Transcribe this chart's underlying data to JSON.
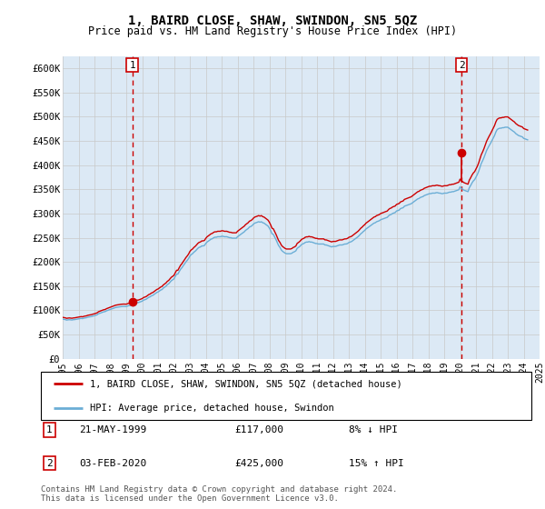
{
  "title": "1, BAIRD CLOSE, SHAW, SWINDON, SN5 5QZ",
  "subtitle": "Price paid vs. HM Land Registry's House Price Index (HPI)",
  "ylabel_ticks": [
    "£0",
    "£50K",
    "£100K",
    "£150K",
    "£200K",
    "£250K",
    "£300K",
    "£350K",
    "£400K",
    "£450K",
    "£500K",
    "£550K",
    "£600K"
  ],
  "ytick_values": [
    0,
    50000,
    100000,
    150000,
    200000,
    250000,
    300000,
    350000,
    400000,
    450000,
    500000,
    550000,
    600000
  ],
  "ylim": [
    0,
    625000
  ],
  "hpi_color": "#6baed6",
  "price_color": "#cc0000",
  "marker_color": "#cc0000",
  "grid_color": "#c8c8c8",
  "chart_bg_color": "#dce9f5",
  "background_color": "#ffffff",
  "sale1_year": 1999.38,
  "sale1_price": 117000,
  "sale2_year": 2020.09,
  "sale2_price": 425000,
  "legend_entry1": "1, BAIRD CLOSE, SHAW, SWINDON, SN5 5QZ (detached house)",
  "legend_entry2": "HPI: Average price, detached house, Swindon",
  "footer": "Contains HM Land Registry data © Crown copyright and database right 2024.\nThis data is licensed under the Open Government Licence v3.0.",
  "hpi_data_years": [
    1995.0,
    1995.08,
    1995.17,
    1995.25,
    1995.33,
    1995.42,
    1995.5,
    1995.58,
    1995.67,
    1995.75,
    1995.83,
    1995.92,
    1996.0,
    1996.08,
    1996.17,
    1996.25,
    1996.33,
    1996.42,
    1996.5,
    1996.58,
    1996.67,
    1996.75,
    1996.83,
    1996.92,
    1997.0,
    1997.08,
    1997.17,
    1997.25,
    1997.33,
    1997.42,
    1997.5,
    1997.58,
    1997.67,
    1997.75,
    1997.83,
    1997.92,
    1998.0,
    1998.08,
    1998.17,
    1998.25,
    1998.33,
    1998.42,
    1998.5,
    1998.58,
    1998.67,
    1998.75,
    1998.83,
    1998.92,
    1999.0,
    1999.08,
    1999.17,
    1999.25,
    1999.33,
    1999.42,
    1999.5,
    1999.58,
    1999.67,
    1999.75,
    1999.83,
    1999.92,
    2000.0,
    2000.08,
    2000.17,
    2000.25,
    2000.33,
    2000.42,
    2000.5,
    2000.58,
    2000.67,
    2000.75,
    2000.83,
    2000.92,
    2001.0,
    2001.08,
    2001.17,
    2001.25,
    2001.33,
    2001.42,
    2001.5,
    2001.58,
    2001.67,
    2001.75,
    2001.83,
    2001.92,
    2002.0,
    2002.08,
    2002.17,
    2002.25,
    2002.33,
    2002.42,
    2002.5,
    2002.58,
    2002.67,
    2002.75,
    2002.83,
    2002.92,
    2003.0,
    2003.08,
    2003.17,
    2003.25,
    2003.33,
    2003.42,
    2003.5,
    2003.58,
    2003.67,
    2003.75,
    2003.83,
    2003.92,
    2004.0,
    2004.08,
    2004.17,
    2004.25,
    2004.33,
    2004.42,
    2004.5,
    2004.58,
    2004.67,
    2004.75,
    2004.83,
    2004.92,
    2005.0,
    2005.08,
    2005.17,
    2005.25,
    2005.33,
    2005.42,
    2005.5,
    2005.58,
    2005.67,
    2005.75,
    2005.83,
    2005.92,
    2006.0,
    2006.08,
    2006.17,
    2006.25,
    2006.33,
    2006.42,
    2006.5,
    2006.58,
    2006.67,
    2006.75,
    2006.83,
    2006.92,
    2007.0,
    2007.08,
    2007.17,
    2007.25,
    2007.33,
    2007.42,
    2007.5,
    2007.58,
    2007.67,
    2007.75,
    2007.83,
    2007.92,
    2008.0,
    2008.08,
    2008.17,
    2008.25,
    2008.33,
    2008.42,
    2008.5,
    2008.58,
    2008.67,
    2008.75,
    2008.83,
    2008.92,
    2009.0,
    2009.08,
    2009.17,
    2009.25,
    2009.33,
    2009.42,
    2009.5,
    2009.58,
    2009.67,
    2009.75,
    2009.83,
    2009.92,
    2010.0,
    2010.08,
    2010.17,
    2010.25,
    2010.33,
    2010.42,
    2010.5,
    2010.58,
    2010.67,
    2010.75,
    2010.83,
    2010.92,
    2011.0,
    2011.08,
    2011.17,
    2011.25,
    2011.33,
    2011.42,
    2011.5,
    2011.58,
    2011.67,
    2011.75,
    2011.83,
    2011.92,
    2012.0,
    2012.08,
    2012.17,
    2012.25,
    2012.33,
    2012.42,
    2012.5,
    2012.58,
    2012.67,
    2012.75,
    2012.83,
    2012.92,
    2013.0,
    2013.08,
    2013.17,
    2013.25,
    2013.33,
    2013.42,
    2013.5,
    2013.58,
    2013.67,
    2013.75,
    2013.83,
    2013.92,
    2014.0,
    2014.08,
    2014.17,
    2014.25,
    2014.33,
    2014.42,
    2014.5,
    2014.58,
    2014.67,
    2014.75,
    2014.83,
    2014.92,
    2015.0,
    2015.08,
    2015.17,
    2015.25,
    2015.33,
    2015.42,
    2015.5,
    2015.58,
    2015.67,
    2015.75,
    2015.83,
    2015.92,
    2016.0,
    2016.08,
    2016.17,
    2016.25,
    2016.33,
    2016.42,
    2016.5,
    2016.58,
    2016.67,
    2016.75,
    2016.83,
    2016.92,
    2017.0,
    2017.08,
    2017.17,
    2017.25,
    2017.33,
    2017.42,
    2017.5,
    2017.58,
    2017.67,
    2017.75,
    2017.83,
    2017.92,
    2018.0,
    2018.08,
    2018.17,
    2018.25,
    2018.33,
    2018.42,
    2018.5,
    2018.58,
    2018.67,
    2018.75,
    2018.83,
    2018.92,
    2019.0,
    2019.08,
    2019.17,
    2019.25,
    2019.33,
    2019.42,
    2019.5,
    2019.58,
    2019.67,
    2019.75,
    2019.83,
    2019.92,
    2020.0,
    2020.08,
    2020.17,
    2020.25,
    2020.33,
    2020.42,
    2020.5,
    2020.58,
    2020.67,
    2020.75,
    2020.83,
    2020.92,
    2021.0,
    2021.08,
    2021.17,
    2021.25,
    2021.33,
    2021.42,
    2021.5,
    2021.58,
    2021.67,
    2021.75,
    2021.83,
    2021.92,
    2022.0,
    2022.08,
    2022.17,
    2022.25,
    2022.33,
    2022.42,
    2022.5,
    2022.58,
    2022.67,
    2022.75,
    2022.83,
    2022.92,
    2023.0,
    2023.08,
    2023.17,
    2023.25,
    2023.33,
    2023.42,
    2023.5,
    2023.58,
    2023.67,
    2023.75,
    2023.83,
    2023.92,
    2024.0,
    2024.08,
    2024.17,
    2024.25
  ],
  "hpi_data_values": [
    82000,
    81500,
    81000,
    80000,
    80500,
    80800,
    80500,
    80200,
    80800,
    81000,
    81500,
    82000,
    82500,
    83000,
    83500,
    83000,
    84000,
    84500,
    85000,
    86000,
    86500,
    87000,
    87500,
    88500,
    89000,
    90000,
    91000,
    93000,
    94000,
    95000,
    96000,
    97000,
    97500,
    99000,
    100000,
    101000,
    102000,
    103000,
    104000,
    105000,
    106000,
    106500,
    107000,
    107500,
    107800,
    108000,
    108200,
    108000,
    108000,
    109000,
    110000,
    110000,
    111000,
    112000,
    113000,
    115000,
    116000,
    116000,
    117000,
    118000,
    119000,
    121000,
    122000,
    123000,
    125000,
    127000,
    128000,
    130000,
    131000,
    133000,
    135000,
    137000,
    138000,
    140000,
    142000,
    143000,
    146000,
    148000,
    150000,
    153000,
    155000,
    158000,
    161000,
    163000,
    165000,
    170000,
    175000,
    175000,
    180000,
    185000,
    188000,
    192000,
    196000,
    200000,
    203000,
    207000,
    212000,
    215000,
    217000,
    220000,
    222000,
    225000,
    228000,
    230000,
    231000,
    233000,
    233000,
    234000,
    238000,
    241000,
    243000,
    245000,
    247000,
    248000,
    250000,
    251000,
    251000,
    252000,
    252000,
    252000,
    253000,
    253000,
    252000,
    252000,
    252000,
    251000,
    250000,
    250000,
    249000,
    249000,
    249000,
    249000,
    252000,
    254000,
    256000,
    258000,
    260000,
    262000,
    265000,
    267000,
    269000,
    272000,
    273000,
    275000,
    278000,
    280000,
    281000,
    282000,
    283000,
    282000,
    283000,
    281000,
    280000,
    278000,
    276000,
    274000,
    270000,
    265000,
    258000,
    257000,
    252000,
    246000,
    240000,
    234000,
    230000,
    225000,
    222000,
    220000,
    218000,
    217000,
    217000,
    217000,
    217000,
    218000,
    220000,
    221000,
    223000,
    228000,
    230000,
    232000,
    235000,
    237000,
    238000,
    240000,
    241000,
    241000,
    242000,
    241000,
    241000,
    240000,
    239000,
    238000,
    238000,
    237000,
    237000,
    237000,
    237000,
    237000,
    235000,
    235000,
    234000,
    233000,
    232000,
    231000,
    232000,
    232000,
    232000,
    233000,
    234000,
    235000,
    235000,
    235000,
    236000,
    237000,
    237000,
    238000,
    240000,
    241000,
    242000,
    244000,
    246000,
    248000,
    250000,
    252000,
    255000,
    258000,
    260000,
    263000,
    265000,
    268000,
    270000,
    272000,
    274000,
    276000,
    278000,
    280000,
    281000,
    283000,
    284000,
    285000,
    287000,
    288000,
    289000,
    290000,
    291000,
    292000,
    295000,
    297000,
    298000,
    300000,
    301000,
    302000,
    305000,
    306000,
    307000,
    310000,
    311000,
    312000,
    315000,
    316000,
    317000,
    318000,
    319000,
    320000,
    322000,
    324000,
    326000,
    328000,
    330000,
    331000,
    333000,
    334000,
    335000,
    337000,
    338000,
    339000,
    340000,
    341000,
    341000,
    342000,
    342000,
    342000,
    343000,
    343000,
    342000,
    342000,
    341000,
    341000,
    342000,
    342000,
    342000,
    343000,
    344000,
    344000,
    345000,
    345000,
    346000,
    347000,
    348000,
    349000,
    355000,
    352000,
    350000,
    348000,
    347000,
    346000,
    345000,
    353000,
    358000,
    363000,
    367000,
    370000,
    375000,
    380000,
    387000,
    395000,
    403000,
    409000,
    415000,
    422000,
    430000,
    435000,
    440000,
    445000,
    450000,
    455000,
    461000,
    468000,
    473000,
    475000,
    476000,
    476000,
    477000,
    477000,
    478000,
    478000,
    478000,
    476000,
    474000,
    472000,
    470000,
    468000,
    465000,
    463000,
    461000,
    460000,
    459000,
    458000,
    455000,
    454000,
    453000,
    452000
  ],
  "xmin": 1995.0,
  "xmax": 2025.0,
  "xtick_years": [
    1995,
    1996,
    1997,
    1998,
    1999,
    2000,
    2001,
    2002,
    2003,
    2004,
    2005,
    2006,
    2007,
    2008,
    2009,
    2010,
    2011,
    2012,
    2013,
    2014,
    2015,
    2016,
    2017,
    2018,
    2019,
    2020,
    2021,
    2022,
    2023,
    2024,
    2025
  ]
}
